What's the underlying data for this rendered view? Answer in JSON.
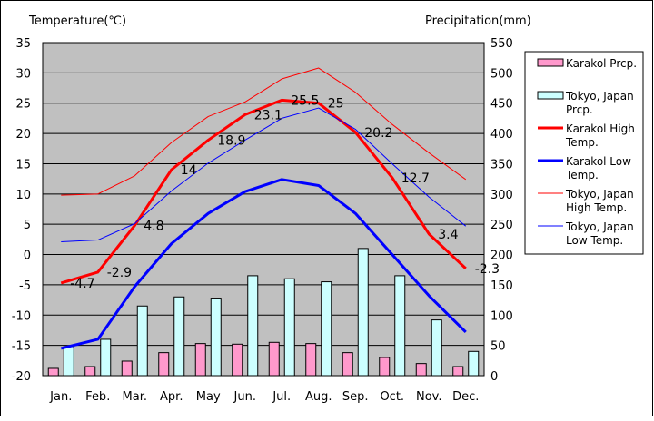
{
  "chart_data": {
    "type": "line",
    "left_axis_title": "Temperature(℃)",
    "right_axis_title": "Precipitation(mm)",
    "categories": [
      "Jan.",
      "Feb.",
      "Mar.",
      "Apr.",
      "May",
      "Jun.",
      "Jul.",
      "Aug.",
      "Sep.",
      "Oct.",
      "Nov.",
      "Dec."
    ],
    "ylim_left": [
      -20,
      35
    ],
    "yticks_left": [
      "35",
      "30",
      "25",
      "20",
      "15",
      "10",
      "5",
      "0",
      "-5",
      "-10",
      "-15",
      "-20"
    ],
    "ylim_right": [
      0,
      550
    ],
    "yticks_right": [
      "550",
      "500",
      "450",
      "400",
      "350",
      "300",
      "250",
      "200",
      "150",
      "100",
      "50",
      "0"
    ],
    "grid": true,
    "plot_background": "#c0c0c0",
    "legend_position": "right",
    "bar_series": [
      {
        "name": "Karakol Prcp.",
        "color": "#ff99cc",
        "values": [
          12,
          15,
          24,
          38,
          53,
          52,
          55,
          53,
          38,
          30,
          20,
          15
        ]
      },
      {
        "name": "Tokyo, Japan Prcp.",
        "color": "#ccffff",
        "values": [
          48,
          60,
          115,
          130,
          128,
          165,
          160,
          155,
          210,
          165,
          92,
          40
        ]
      }
    ],
    "line_series": [
      {
        "name": "Karakol High Temp.",
        "color": "#ff0000",
        "width": 3,
        "values": [
          -4.7,
          -2.9,
          4.8,
          14,
          18.9,
          23.1,
          25.5,
          25,
          20.2,
          12.7,
          3.4,
          -2.3
        ]
      },
      {
        "name": "Karakol Low Temp.",
        "color": "#0000ff",
        "width": 3,
        "values": [
          -15.5,
          -14,
          -5.3,
          1.8,
          6.8,
          10.4,
          12.4,
          11.4,
          6.8,
          0,
          -6.8,
          -12.8
        ]
      },
      {
        "name": "Tokyo, Japan High Temp.",
        "color": "#ff0000",
        "width": 1,
        "values": [
          9.8,
          10,
          13,
          18.5,
          22.8,
          25.2,
          29,
          30.8,
          26.8,
          21.5,
          16.8,
          12.4
        ]
      },
      {
        "name": "Tokyo, Japan Low Temp.",
        "color": "#0000ff",
        "width": 1,
        "values": [
          2.1,
          2.4,
          5.1,
          10.5,
          15.1,
          18.9,
          22.5,
          24.2,
          20.7,
          15,
          9.5,
          4.7
        ]
      }
    ],
    "data_labels": [
      "-4.7",
      "-2.9",
      "4.8",
      "14",
      "18.9",
      "23.1",
      "25.5",
      "25",
      "20.2",
      "12.7",
      "3.4",
      "-2.3"
    ],
    "legend": [
      {
        "label": [
          "Karakol Prcp."
        ],
        "kind": "bar",
        "color": "#ff99cc"
      },
      {
        "label": [
          "Tokyo, Japan",
          "Prcp."
        ],
        "kind": "bar",
        "color": "#ccffff"
      },
      {
        "label": [
          "Karakol High",
          "Temp."
        ],
        "kind": "line",
        "color": "#ff0000",
        "width": 3
      },
      {
        "label": [
          "Karakol Low",
          "Temp."
        ],
        "kind": "line",
        "color": "#0000ff",
        "width": 3
      },
      {
        "label": [
          "Tokyo, Japan",
          "High Temp."
        ],
        "kind": "line",
        "color": "#ff0000",
        "width": 1
      },
      {
        "label": [
          "Tokyo, Japan",
          "Low Temp."
        ],
        "kind": "line",
        "color": "#0000ff",
        "width": 1
      }
    ]
  }
}
